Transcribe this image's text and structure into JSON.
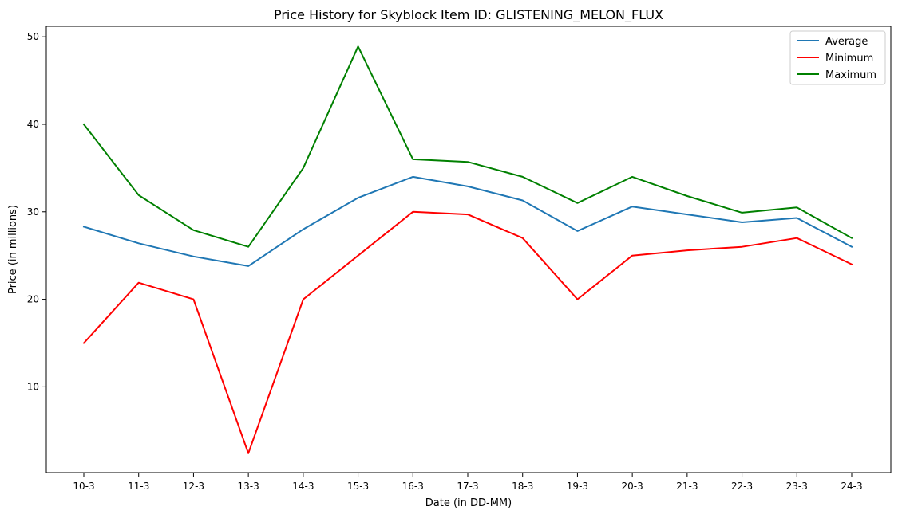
{
  "chart_data": {
    "type": "line",
    "title": "Price History for Skyblock Item ID: GLISTENING_MELON_FLUX",
    "xlabel": "Date (in DD-MM)",
    "ylabel": "Price (in millions)",
    "categories": [
      "10-3",
      "11-3",
      "12-3",
      "13-3",
      "14-3",
      "15-3",
      "16-3",
      "17-3",
      "18-3",
      "19-3",
      "20-3",
      "21-3",
      "22-3",
      "23-3",
      "24-3"
    ],
    "ylim": [
      0.2,
      51.2
    ],
    "yticks": [
      10,
      20,
      30,
      40,
      50
    ],
    "grid": false,
    "legend_position": "top-right",
    "series": [
      {
        "name": "Average",
        "color": "#1f77b4",
        "values": [
          28.3,
          26.4,
          24.9,
          23.8,
          28.0,
          31.6,
          34.0,
          32.9,
          31.3,
          27.8,
          30.6,
          29.7,
          28.8,
          29.3,
          26.0
        ]
      },
      {
        "name": "Minimum",
        "color": "#ff0000",
        "values": [
          15.0,
          21.9,
          20.0,
          2.4,
          20.0,
          25.0,
          30.0,
          29.7,
          27.0,
          20.0,
          25.0,
          25.6,
          26.0,
          27.0,
          24.0
        ]
      },
      {
        "name": "Maximum",
        "color": "#008000",
        "values": [
          40.0,
          31.9,
          27.9,
          26.0,
          35.0,
          48.9,
          36.0,
          35.7,
          34.0,
          31.0,
          34.0,
          31.8,
          29.9,
          30.5,
          27.0
        ]
      }
    ]
  }
}
